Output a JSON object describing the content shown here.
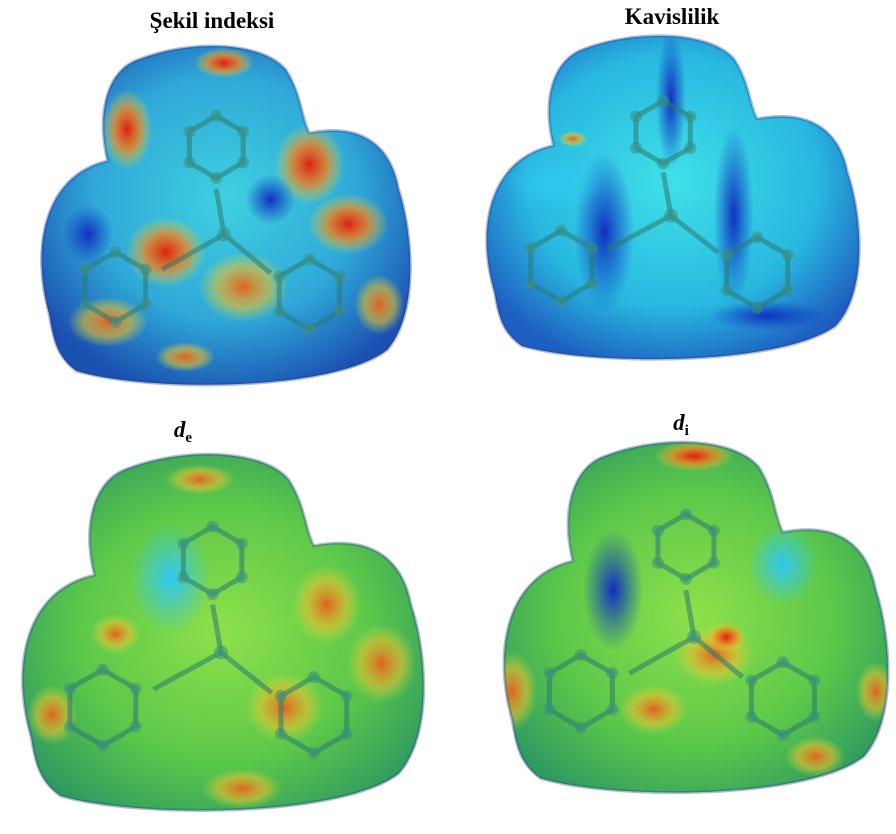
{
  "panels": [
    {
      "title": "Şekil indeksi"
    },
    {
      "title": "Kavislilik"
    },
    {
      "title": {
        "symbol": "d",
        "subscript": "e"
      }
    },
    {
      "title": {
        "symbol": "d",
        "subscript": "i"
      }
    }
  ]
}
